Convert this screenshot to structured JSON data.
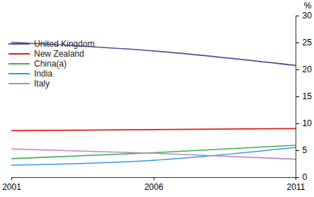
{
  "chart_data": {
    "type": "line",
    "x": [
      2001,
      2006,
      2011
    ],
    "series": [
      {
        "name": "United Kingdom",
        "color": "#5b4a9b",
        "values": [
          25.1,
          23.5,
          20.8
        ]
      },
      {
        "name": "New Zealand",
        "color": "#e3201b",
        "values": [
          8.7,
          8.9,
          9.1
        ]
      },
      {
        "name": "China(a)",
        "color": "#3cb34a",
        "values": [
          3.5,
          4.6,
          6.0
        ]
      },
      {
        "name": "India",
        "color": "#3a9ad9",
        "values": [
          2.3,
          3.2,
          5.6
        ]
      },
      {
        "name": "Italy",
        "color": "#b48cc8",
        "values": [
          5.3,
          4.5,
          3.4
        ]
      }
    ],
    "xlim": [
      2001,
      2011
    ],
    "xticks": [
      2001,
      2006,
      2011
    ],
    "ylim": [
      0,
      30
    ],
    "yticks": [
      0,
      5,
      10,
      15,
      20,
      25,
      30
    ],
    "ylabel": "%",
    "legend": "top-left",
    "grid": false
  }
}
